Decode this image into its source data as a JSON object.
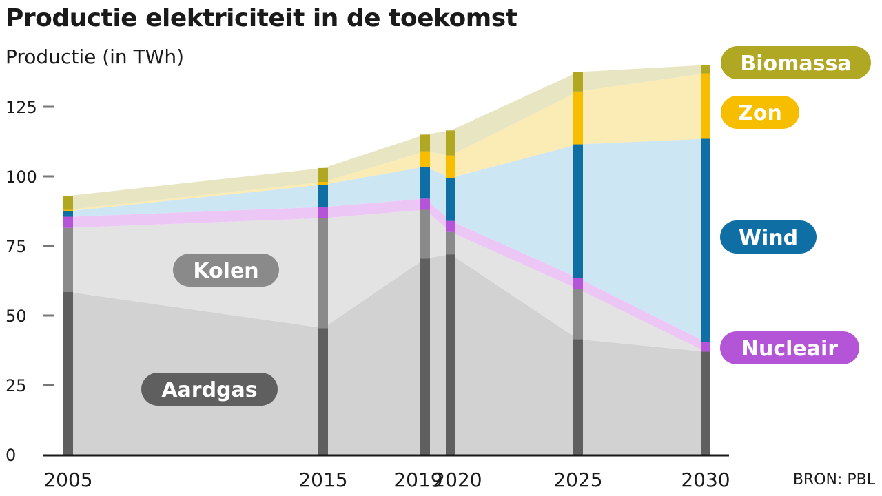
{
  "title": "Productie elektriciteit in de toekomst",
  "subtitle": "Productie (in TWh)",
  "source": "BRON: PBL",
  "chart_data": {
    "type": "area",
    "title": "Productie elektriciteit in de toekomst",
    "ylabel": "Productie (in TWh)",
    "xlabel": "",
    "x": [
      2005,
      2015,
      2019,
      2020,
      2025,
      2030
    ],
    "x_tick_labels": [
      "2005",
      "2015",
      "2019",
      "2020",
      "2025",
      "2030"
    ],
    "y_ticks": [
      0,
      25,
      50,
      75,
      100,
      125
    ],
    "ylim": [
      0,
      140
    ],
    "grid": false,
    "legend": "right",
    "series": [
      {
        "name": "Aardgas",
        "color": "#5f5f5f",
        "area_color": "#d2d2d2",
        "values": [
          58.5,
          45.5,
          70.5,
          72,
          41.5,
          37
        ]
      },
      {
        "name": "Kolen",
        "color": "#8a8a8a",
        "area_color": "#e3e3e3",
        "values": [
          23,
          39.5,
          17.5,
          8,
          18,
          0
        ]
      },
      {
        "name": "Nucleair",
        "color": "#b355d6",
        "area_color": "#ecc7f5",
        "values": [
          4,
          4,
          4,
          4,
          4,
          3.5
        ]
      },
      {
        "name": "Wind",
        "color": "#0f6ea3",
        "area_color": "#cde6f4",
        "values": [
          2,
          8,
          11.5,
          15.5,
          48,
          73
        ]
      },
      {
        "name": "Zon",
        "color": "#f7be00",
        "area_color": "#fbebb5",
        "values": [
          0.5,
          1,
          5.5,
          8,
          19,
          23.5
        ]
      },
      {
        "name": "Biomassa",
        "color": "#b0a823",
        "area_color": "#e8e6c2",
        "values": [
          5,
          5,
          6,
          9,
          7,
          3
        ]
      }
    ],
    "labels": {
      "Biomassa": "Biomassa",
      "Zon": "Zon",
      "Wind": "Wind",
      "Nucleair": "Nucleair",
      "Kolen": "Kolen",
      "Aardgas": "Aardgas"
    },
    "label_colors": {
      "Biomassa": "#b0a823",
      "Zon": "#f7be00",
      "Wind": "#0f6ea3",
      "Nucleair": "#b355d6",
      "Kolen": "#8a8a8a",
      "Aardgas": "#5f5f5f"
    }
  }
}
